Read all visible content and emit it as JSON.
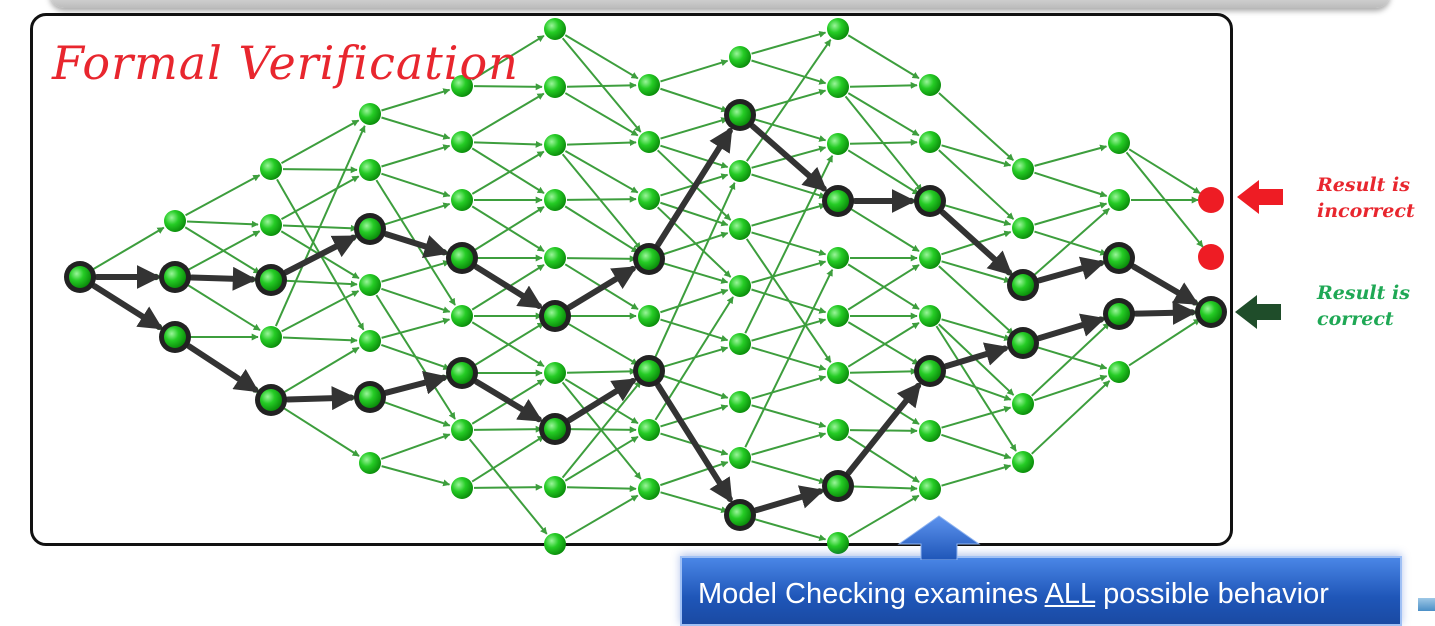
{
  "title": "Formal Verification",
  "labels": {
    "incorrect": [
      "Result is",
      "incorrect"
    ],
    "correct": [
      "Result is",
      "correct"
    ]
  },
  "banner": {
    "prefix": "Model Checking examines ",
    "emphasis": "ALL",
    "suffix": " possible behavior"
  },
  "colors": {
    "node": "#22c322",
    "edge": "#3d9e3d",
    "path": "#333333",
    "bad": "#ee1c24",
    "title": "#e8262e",
    "correct_label": "#1fa855",
    "banner": "#2c64c8"
  }
}
